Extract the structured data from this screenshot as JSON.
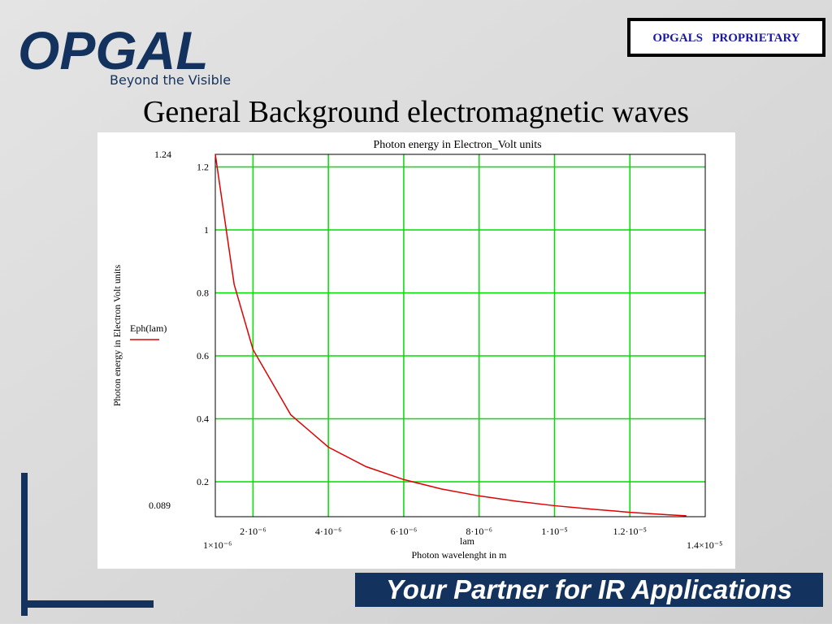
{
  "logo": {
    "name": "OPGAL",
    "tagline": "Beyond the Visible"
  },
  "badge": "OPGALS   PROPRIETARY",
  "title": "General Background electromagnetic waves",
  "banner": "Your Partner for IR Applications",
  "chart_data": {
    "type": "line",
    "title": "Photon energy in Electron_Volt units",
    "y_label": "Photon energy in Electron Volt units",
    "x_label": "lam",
    "x_sublabel": "Photon wavelenght in m",
    "x": [
      1e-06,
      1.5e-06,
      2e-06,
      3e-06,
      4e-06,
      5e-06,
      6e-06,
      7e-06,
      8e-06,
      9e-06,
      1e-05,
      1.1e-05,
      1.2e-05,
      1.3e-05,
      1.35e-05
    ],
    "series": [
      {
        "name": "Eph(lam)",
        "color": "#e00000",
        "values": [
          1.24,
          0.827,
          0.62,
          0.413,
          0.31,
          0.248,
          0.207,
          0.177,
          0.155,
          0.138,
          0.124,
          0.113,
          0.103,
          0.095,
          0.092
        ]
      }
    ],
    "xlim": [
      1e-06,
      1.4e-05
    ],
    "xlim_labels": [
      "1×10⁻⁶",
      "1.4×10⁻⁵"
    ],
    "ylim": [
      0.089,
      1.24
    ],
    "xticks": [
      {
        "value": 2e-06,
        "label": "2·10⁻⁶"
      },
      {
        "value": 4e-06,
        "label": "4·10⁻⁶"
      },
      {
        "value": 6e-06,
        "label": "6·10⁻⁶"
      },
      {
        "value": 8e-06,
        "label": "8·10⁻⁶"
      },
      {
        "value": 1e-05,
        "label": "1·10⁻⁵"
      },
      {
        "value": 1.2e-05,
        "label": "1.2·10⁻⁵"
      }
    ],
    "yticks": [
      0.2,
      0.4,
      0.6,
      0.8,
      1,
      1.2
    ],
    "grid": true,
    "grid_color": "#00dd00"
  }
}
